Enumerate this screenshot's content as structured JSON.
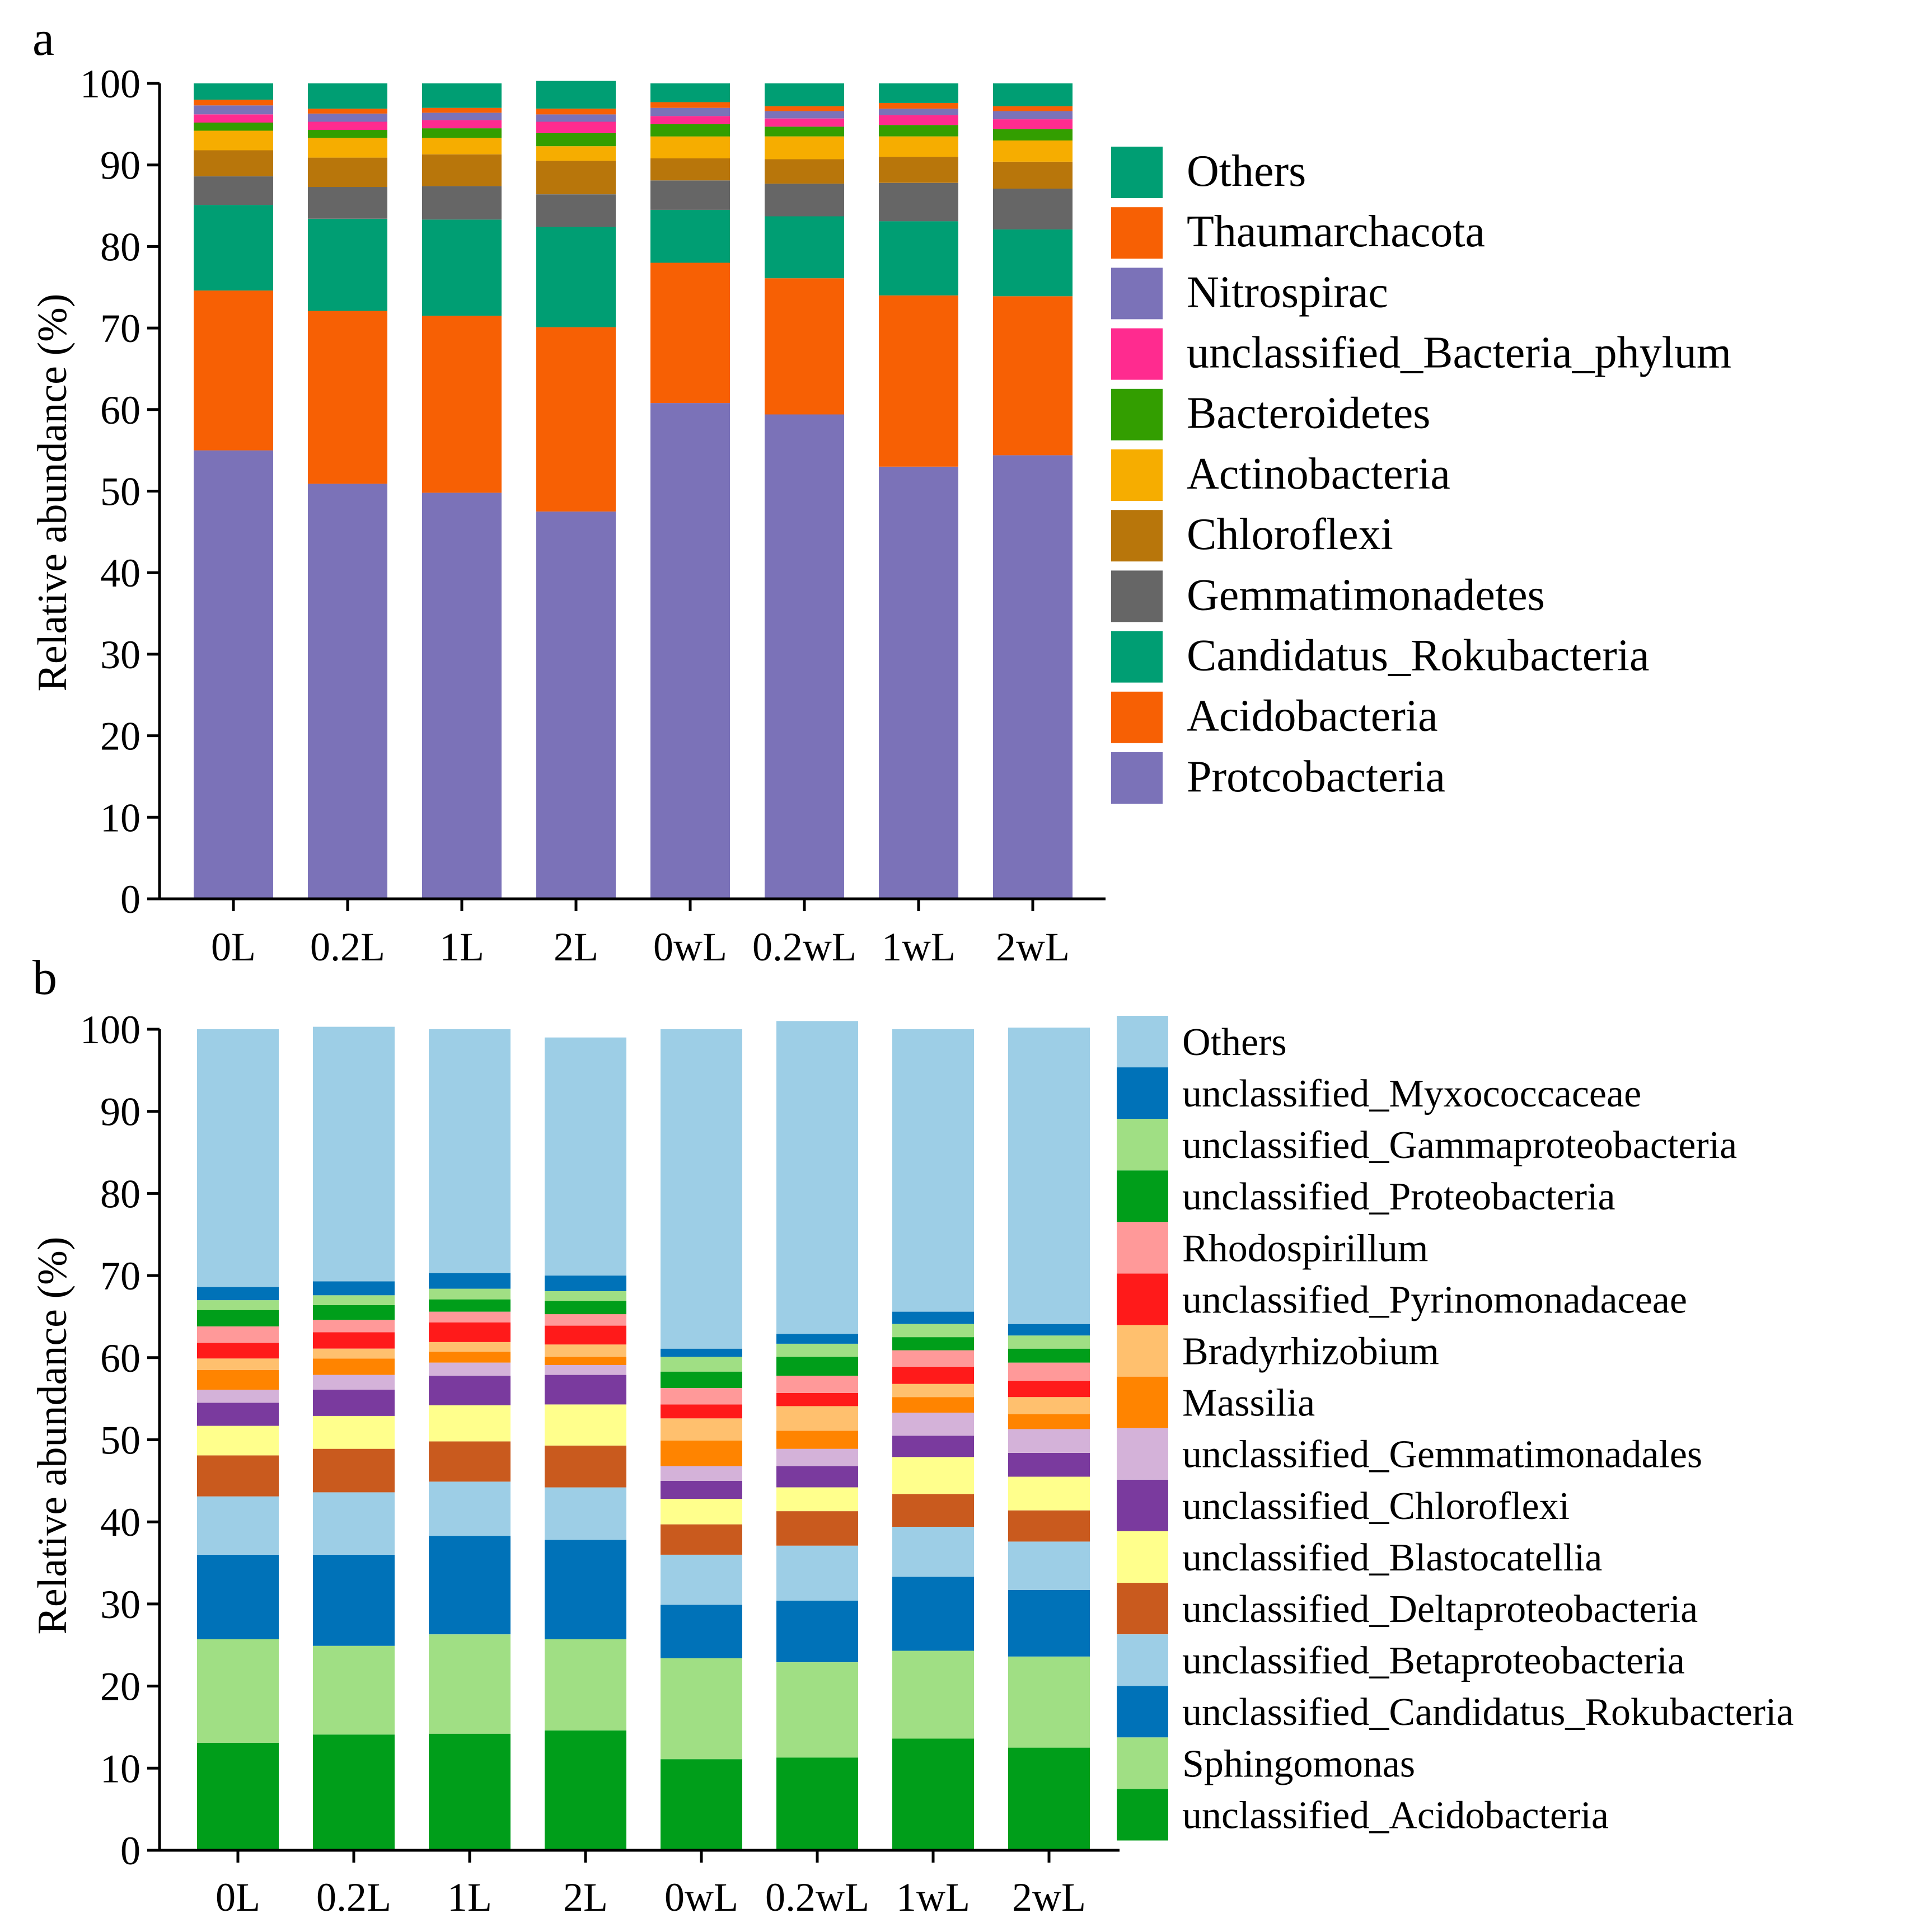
{
  "chart_data": [
    {
      "type": "stacked-bar",
      "panel_label": "a",
      "ylabel": "Relative abundance (%)",
      "ylim": [
        0,
        100
      ],
      "yticks": [
        0,
        10,
        20,
        30,
        40,
        50,
        60,
        70,
        80,
        90,
        100
      ],
      "categories": [
        "0L",
        "0.2L",
        "1L",
        "2L",
        "0wL",
        "0.2wL",
        "1wL",
        "2wL"
      ],
      "legend_position": "right",
      "series": [
        {
          "name": "Protcobacteria",
          "color": "#7b72b8",
          "values": [
            55.0,
            50.9,
            49.8,
            47.5,
            60.8,
            59.4,
            53.0,
            54.4
          ]
        },
        {
          "name": "Acidobacteria",
          "color": "#f76004",
          "values": [
            19.6,
            21.2,
            21.7,
            22.6,
            17.2,
            16.7,
            21.0,
            19.5
          ]
        },
        {
          "name": "Candidatus_Rokubacteria",
          "color": "#009e73",
          "values": [
            10.5,
            11.3,
            11.8,
            12.3,
            6.5,
            7.6,
            9.1,
            8.2
          ]
        },
        {
          "name": "Gemmatimonadetes",
          "color": "#666666",
          "values": [
            3.5,
            3.9,
            4.1,
            4.0,
            3.6,
            4.0,
            4.7,
            5.0
          ]
        },
        {
          "name": "Chloroflexi",
          "color": "#b8760b",
          "values": [
            3.2,
            3.6,
            3.9,
            4.1,
            2.7,
            3.0,
            3.2,
            3.3
          ]
        },
        {
          "name": "Actinobacteria",
          "color": "#f6ad00",
          "values": [
            2.4,
            2.4,
            2.0,
            1.8,
            2.7,
            2.8,
            2.5,
            2.6
          ]
        },
        {
          "name": "Bacteroidetes",
          "color": "#339e00",
          "values": [
            1.0,
            1.0,
            1.2,
            1.6,
            1.5,
            1.2,
            1.4,
            1.4
          ]
        },
        {
          "name": "unclassified_Bacteria_phylum",
          "color": "#ff2b8f",
          "values": [
            1.0,
            1.0,
            1.0,
            1.4,
            1.0,
            1.0,
            1.2,
            1.2
          ]
        },
        {
          "name": "Nitrospirac",
          "color": "#7b72b8",
          "values": [
            1.1,
            1.0,
            0.9,
            0.9,
            1.0,
            0.9,
            0.8,
            1.0
          ]
        },
        {
          "name": "Thaumarchacota",
          "color": "#f76004",
          "values": [
            0.7,
            0.6,
            0.6,
            0.7,
            0.7,
            0.6,
            0.7,
            0.6
          ]
        },
        {
          "name": "Others",
          "color": "#009e73",
          "values": [
            2.0,
            3.1,
            3.0,
            3.4,
            2.3,
            2.8,
            2.4,
            2.8
          ]
        }
      ]
    },
    {
      "type": "stacked-bar",
      "panel_label": "b",
      "ylabel": "Relative abundance (%)",
      "ylim": [
        0,
        100
      ],
      "yticks": [
        0,
        10,
        20,
        30,
        40,
        50,
        60,
        70,
        80,
        90,
        100
      ],
      "categories": [
        "0L",
        "0.2L",
        "1L",
        "2L",
        "0wL",
        "0.2wL",
        "1wL",
        "2wL"
      ],
      "legend_position": "right",
      "series": [
        {
          "name": "unclassified_Acidobacteria",
          "color": "#009e1a",
          "values": [
            13.1,
            14.1,
            14.2,
            14.6,
            11.1,
            11.3,
            13.6,
            12.5
          ]
        },
        {
          "name": "Sphingomonas",
          "color": "#a0df84",
          "values": [
            12.6,
            10.8,
            12.1,
            11.1,
            12.3,
            11.6,
            10.7,
            11.1
          ]
        },
        {
          "name": "unclassified_Candidatus_Rokubacteria",
          "color": "#0072b8",
          "values": [
            10.3,
            11.1,
            12.0,
            12.1,
            6.5,
            7.5,
            9.0,
            8.1
          ]
        },
        {
          "name": "unclassified_Betaproteobacteria",
          "color": "#9dcee6",
          "values": [
            7.1,
            7.6,
            6.6,
            6.4,
            6.1,
            6.7,
            6.1,
            5.9
          ]
        },
        {
          "name": "unclassified_Deltaproteobacteria",
          "color": "#c95a1e",
          "values": [
            5.0,
            5.3,
            4.9,
            5.1,
            3.7,
            4.2,
            4.0,
            3.8
          ]
        },
        {
          "name": "unclassified_Blastocatellia",
          "color": "#ffff8c",
          "values": [
            3.6,
            4.0,
            4.4,
            5.0,
            3.1,
            2.9,
            4.5,
            4.1
          ]
        },
        {
          "name": "unclassified_Chloroflexi",
          "color": "#7a3a9e",
          "values": [
            2.8,
            3.2,
            3.6,
            3.6,
            2.2,
            2.6,
            2.6,
            2.9
          ]
        },
        {
          "name": "unclassified_Gemmatimonadales",
          "color": "#d4b2d9",
          "values": [
            1.6,
            1.8,
            1.6,
            1.2,
            1.8,
            2.1,
            2.8,
            2.9
          ]
        },
        {
          "name": "Massilia",
          "color": "#ff8400",
          "values": [
            2.4,
            2.0,
            1.3,
            1.0,
            3.1,
            2.2,
            1.9,
            1.8
          ]
        },
        {
          "name": "Bradyrhizobium",
          "color": "#ffc06e",
          "values": [
            1.4,
            1.2,
            1.2,
            1.5,
            2.7,
            3.0,
            1.6,
            2.1
          ]
        },
        {
          "name": "unclassified_Pyrinomonadaceae",
          "color": "#ff1a1a",
          "values": [
            1.9,
            2.0,
            2.4,
            2.3,
            1.7,
            1.6,
            2.1,
            2.0
          ]
        },
        {
          "name": "Rhodospirillum",
          "color": "#ff9999",
          "values": [
            2.0,
            1.5,
            1.3,
            1.4,
            2.0,
            2.1,
            2.0,
            2.2
          ]
        },
        {
          "name": "unclassified_Proteobacteria",
          "color": "#009e1a",
          "values": [
            2.0,
            1.8,
            1.5,
            1.6,
            2.0,
            2.3,
            1.6,
            1.7
          ]
        },
        {
          "name": "unclassified_Gammaproteobacteria",
          "color": "#a0df84",
          "values": [
            1.2,
            1.2,
            1.3,
            1.2,
            1.8,
            1.6,
            1.6,
            1.6
          ]
        },
        {
          "name": "unclassified_Myxococcaceae",
          "color": "#0072b8",
          "values": [
            1.6,
            1.7,
            1.9,
            1.9,
            1.0,
            1.2,
            1.5,
            1.4
          ]
        },
        {
          "name": "Others",
          "color": "#9dcee6",
          "values": [
            31.4,
            31.0,
            29.7,
            29.0,
            38.9,
            38.1,
            34.4,
            36.1
          ]
        }
      ]
    }
  ]
}
